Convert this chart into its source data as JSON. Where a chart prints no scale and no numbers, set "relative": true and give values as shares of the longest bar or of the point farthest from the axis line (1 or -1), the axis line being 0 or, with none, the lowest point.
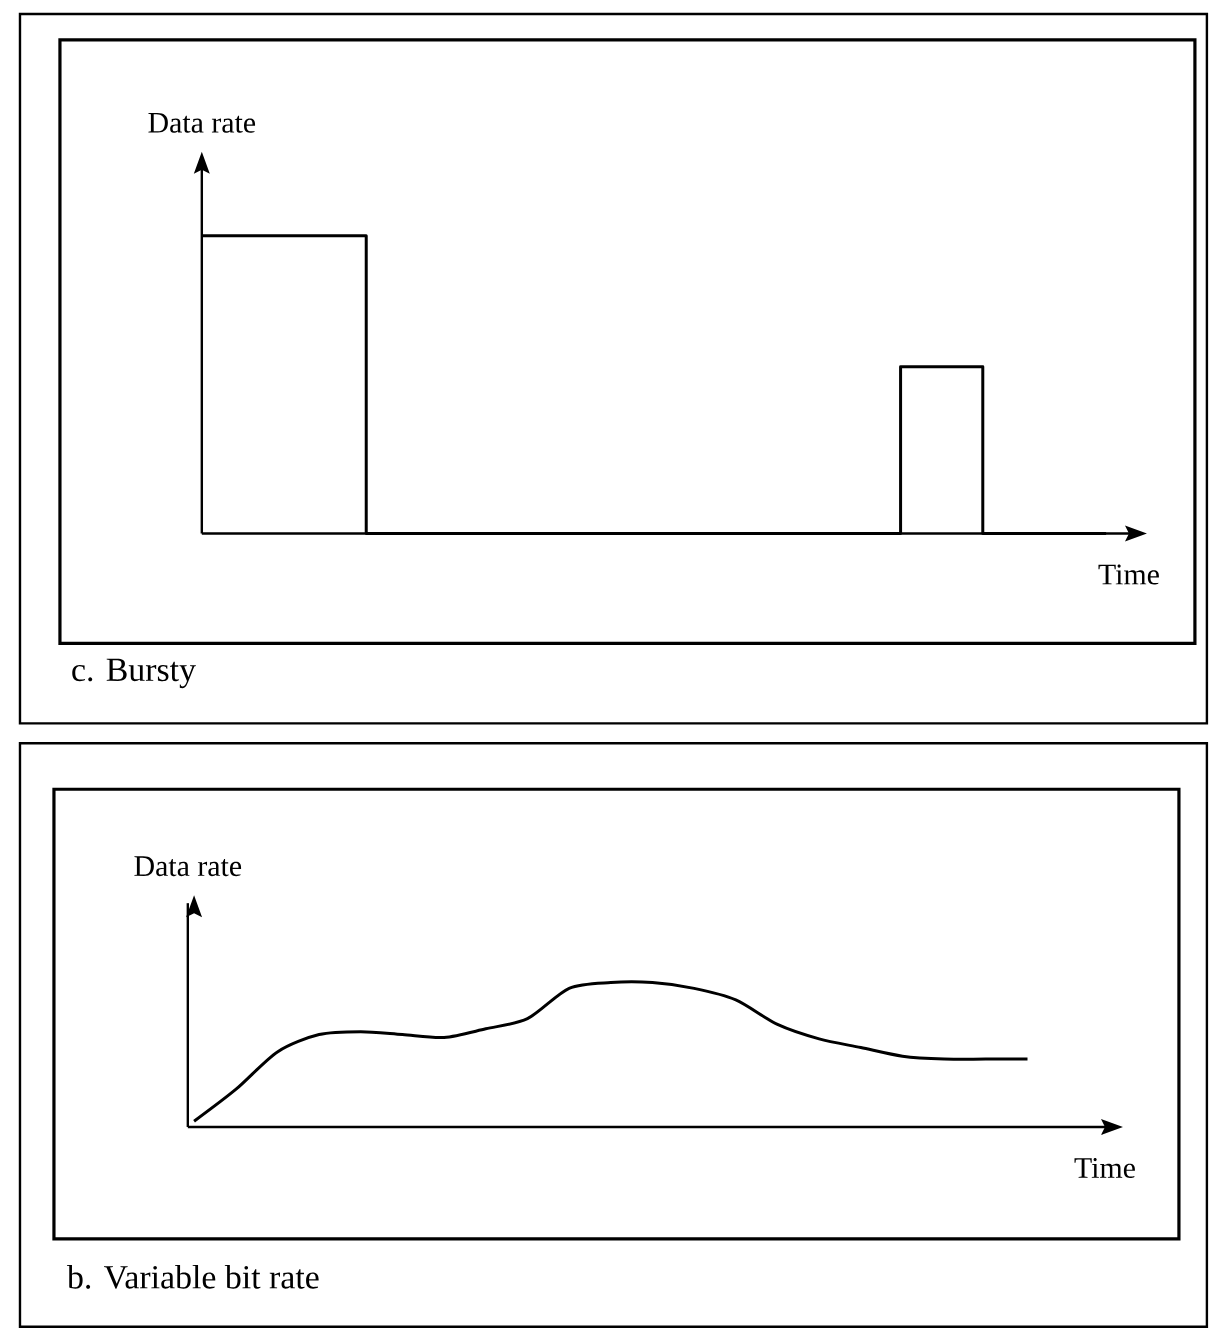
{
  "chart_data": [
    {
      "type": "step",
      "title": "c. Bursty",
      "xlabel": "Time",
      "ylabel": "Data rate",
      "relative": true,
      "color": "#000000",
      "categories": [
        null,
        null,
        null,
        null,
        null,
        null,
        null,
        null,
        null,
        null,
        null,
        null,
        null,
        null,
        null,
        null,
        null,
        null,
        null,
        null,
        null,
        null,
        null
      ],
      "values": [
        1,
        1,
        1,
        1,
        0,
        0,
        0,
        0,
        0,
        0,
        0,
        0,
        0,
        0,
        0,
        0,
        0,
        0.56,
        0.56,
        0,
        0,
        0,
        0
      ]
    },
    {
      "type": "line",
      "title": "b. Variable bit rate",
      "xlabel": "Time",
      "ylabel": "Data rate",
      "relative": true,
      "color": "#000000",
      "categories": [
        null,
        null,
        null,
        null,
        null,
        null,
        null,
        null,
        null,
        null,
        null,
        null,
        null,
        null,
        null,
        null,
        null,
        null,
        null,
        null,
        null,
        null,
        null
      ],
      "values": [
        0.04,
        0.26,
        0.52,
        0.64,
        0.66,
        0.64,
        0.62,
        0.68,
        0.75,
        0.96,
        1,
        1,
        0.96,
        0.88,
        0.71,
        0.61,
        0.55,
        0.49,
        0.47,
        0.47,
        0.47,
        null,
        null
      ]
    }
  ]
}
